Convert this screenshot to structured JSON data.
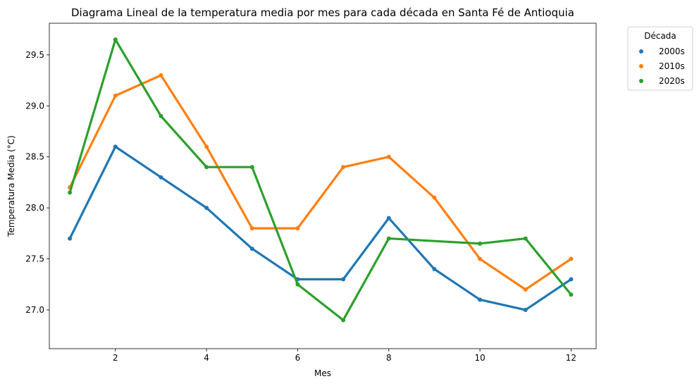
{
  "chart_data": {
    "type": "line",
    "title": "Diagrama Lineal de la temperatura media por mes para cada década en Santa Fé de Antioquia",
    "xlabel": "Mes",
    "ylabel": "Temperatura Media (°C)",
    "x": [
      1,
      2,
      3,
      4,
      5,
      6,
      7,
      8,
      9,
      10,
      11,
      12
    ],
    "xlim": [
      0.55,
      12.55
    ],
    "ylim": [
      26.62,
      29.81
    ],
    "xticks": [
      2,
      4,
      6,
      8,
      10,
      12
    ],
    "xtick_labels": [
      "2",
      "4",
      "6",
      "8",
      "10",
      "12"
    ],
    "yticks": [
      27.0,
      27.5,
      28.0,
      28.5,
      29.0,
      29.5
    ],
    "ytick_labels": [
      "27.0",
      "27.5",
      "28.0",
      "28.5",
      "29.0",
      "29.5"
    ],
    "grid": false,
    "legend": {
      "title": "Década",
      "placement": "outside-top-right"
    },
    "series": [
      {
        "name": "2000s",
        "color": "#1f77b4",
        "values": [
          27.7,
          28.6,
          28.3,
          28.0,
          27.6,
          27.3,
          27.3,
          27.9,
          27.4,
          27.1,
          27.0,
          27.3
        ]
      },
      {
        "name": "2010s",
        "color": "#ff7f0e",
        "values": [
          28.2,
          29.1,
          29.3,
          28.6,
          27.8,
          27.8,
          28.4,
          28.5,
          28.1,
          27.5,
          27.2,
          27.5
        ]
      },
      {
        "name": "2020s",
        "color": "#2ca02c",
        "values": [
          28.15,
          29.65,
          28.9,
          28.4,
          28.4,
          27.25,
          26.9,
          27.7,
          null,
          27.65,
          27.7,
          27.15
        ]
      }
    ]
  }
}
